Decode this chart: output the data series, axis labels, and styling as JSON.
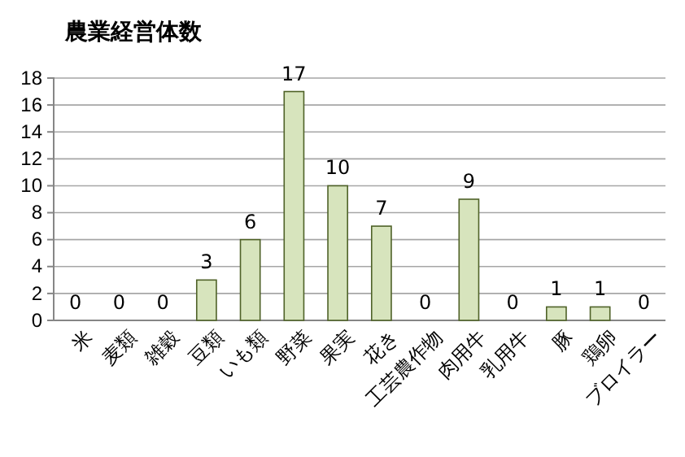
{
  "chart_data": {
    "type": "bar",
    "title": "農業経営体数",
    "categories": [
      "米",
      "麦類",
      "雑穀",
      "豆類",
      "いも類",
      "野菜",
      "果実",
      "花き",
      "工芸農作物",
      "肉用牛",
      "乳用牛",
      "豚",
      "鶏卵",
      "ブロイラー"
    ],
    "values": [
      0,
      0,
      0,
      3,
      6,
      17,
      10,
      7,
      0,
      9,
      0,
      1,
      1,
      0
    ],
    "color": "#d7e4bd",
    "ylim": [
      0,
      18
    ],
    "yticks": [
      0,
      2,
      4,
      6,
      8,
      10,
      12,
      14,
      16,
      18
    ],
    "grid": "y",
    "data_labels": true
  }
}
